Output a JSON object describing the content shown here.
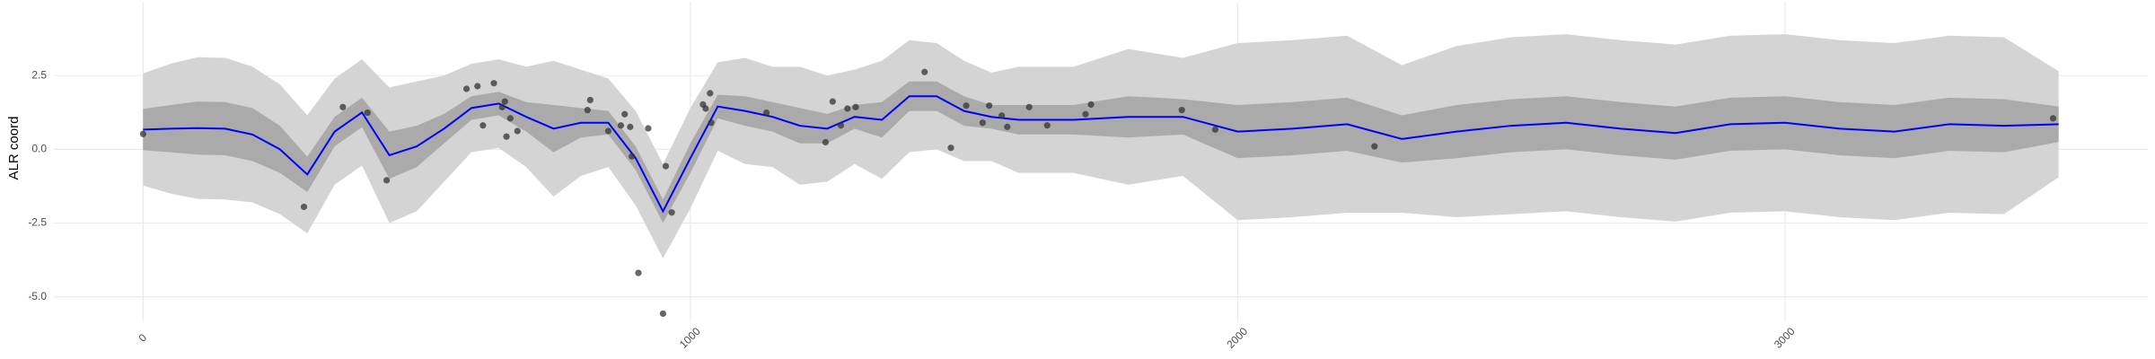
{
  "chart_data": {
    "type": "line",
    "y_label": "ALR coord",
    "xlim": [
      -163,
      3663
    ],
    "ylim": [
      -5.86,
      5.0
    ],
    "xticks": [
      0,
      1000,
      2000,
      3000
    ],
    "yticks": [
      {
        "value": -5,
        "label": "-5.0"
      },
      -2.5,
      {
        "value": 0,
        "label": "0.0"
      },
      2.5
    ],
    "grid": true,
    "x": [
      0,
      50,
      100,
      150,
      200,
      250,
      300,
      350,
      400,
      450,
      500,
      550,
      600,
      650,
      700,
      750,
      800,
      850,
      900,
      950,
      1000,
      1050,
      1100,
      1150,
      1200,
      1250,
      1300,
      1350,
      1400,
      1450,
      1500,
      1550,
      1600,
      1700,
      1800,
      1900,
      2000,
      2100,
      2200,
      2300,
      2400,
      2500,
      2600,
      2700,
      2800,
      2900,
      3000,
      3100,
      3200,
      3300,
      3400,
      3500
    ],
    "ribbons": [
      {
        "color": "#d4d4d4",
        "upper": [
          2.57,
          2.9,
          3.12,
          3.1,
          2.8,
          2.2,
          1.15,
          2.4,
          3.05,
          2.1,
          2.3,
          2.5,
          2.9,
          3.05,
          2.8,
          3.0,
          2.7,
          2.4,
          1.3,
          -0.5,
          1.4,
          2.95,
          3.1,
          2.8,
          2.8,
          2.5,
          2.7,
          3.0,
          3.7,
          3.6,
          3.0,
          2.6,
          2.8,
          2.8,
          3.4,
          3.1,
          3.6,
          3.7,
          3.85,
          2.85,
          3.5,
          3.8,
          3.9,
          3.7,
          3.55,
          3.85,
          3.9,
          3.7,
          3.6,
          3.85,
          3.8,
          2.65
        ],
        "lower": [
          -1.23,
          -1.5,
          -1.68,
          -1.7,
          -1.8,
          -2.2,
          -2.85,
          -1.2,
          -0.55,
          -2.5,
          -2.1,
          -1.1,
          -0.1,
          0.05,
          -0.6,
          -1.6,
          -0.9,
          -0.6,
          -1.9,
          -3.7,
          -2.0,
          -0.05,
          -0.5,
          -0.6,
          -1.2,
          -1.1,
          -0.5,
          -1.0,
          -0.1,
          0.0,
          -0.4,
          -0.4,
          -0.8,
          -0.8,
          -1.2,
          -0.9,
          -2.4,
          -2.3,
          -2.15,
          -2.15,
          -2.3,
          -2.2,
          -2.1,
          -2.3,
          -2.45,
          -2.15,
          -2.1,
          -2.3,
          -2.4,
          -2.15,
          -2.2,
          -0.95
        ]
      },
      {
        "color": "#aaaaaa",
        "upper": [
          1.37,
          1.5,
          1.62,
          1.6,
          1.4,
          0.8,
          -0.25,
          1.1,
          1.75,
          0.6,
          0.8,
          1.2,
          1.8,
          1.95,
          1.6,
          1.5,
          1.4,
          1.3,
          0.1,
          -1.7,
          0.2,
          1.85,
          1.8,
          1.6,
          1.4,
          1.2,
          1.5,
          1.6,
          2.3,
          2.3,
          1.8,
          1.5,
          1.5,
          1.5,
          1.8,
          1.7,
          1.5,
          1.6,
          1.75,
          1.15,
          1.5,
          1.7,
          1.8,
          1.6,
          1.45,
          1.75,
          1.8,
          1.6,
          1.5,
          1.75,
          1.7,
          1.45
        ],
        "lower": [
          -0.03,
          -0.1,
          -0.18,
          -0.2,
          -0.4,
          -0.8,
          -1.45,
          0.1,
          0.75,
          -1.0,
          -0.6,
          0.2,
          1.0,
          1.15,
          0.6,
          -0.1,
          0.4,
          0.5,
          -0.7,
          -2.5,
          -0.8,
          1.05,
          0.8,
          0.6,
          0.2,
          0.2,
          0.7,
          0.4,
          1.3,
          1.3,
          0.8,
          0.7,
          0.5,
          0.5,
          0.4,
          0.5,
          -0.3,
          -0.2,
          -0.05,
          -0.45,
          -0.3,
          -0.1,
          0.0,
          -0.2,
          -0.35,
          -0.05,
          0.0,
          -0.2,
          -0.3,
          -0.05,
          -0.1,
          0.25
        ]
      }
    ],
    "line": {
      "color": "#0000ff",
      "values": [
        0.67,
        0.7,
        0.72,
        0.7,
        0.5,
        0.0,
        -0.85,
        0.6,
        1.25,
        -0.2,
        0.1,
        0.7,
        1.4,
        1.55,
        1.1,
        0.7,
        0.9,
        0.9,
        -0.3,
        -2.1,
        -0.3,
        1.45,
        1.3,
        1.1,
        0.8,
        0.7,
        1.1,
        1.0,
        1.8,
        1.8,
        1.3,
        1.1,
        1.0,
        1.0,
        1.1,
        1.1,
        0.6,
        0.7,
        0.85,
        0.35,
        0.6,
        0.8,
        0.9,
        0.7,
        0.55,
        0.85,
        0.9,
        0.7,
        0.6,
        0.85,
        0.8,
        0.85
      ]
    },
    "points": {
      "color": "#333333",
      "x": [
        0,
        294,
        365,
        410,
        445,
        591,
        611,
        621,
        641,
        656,
        661,
        664,
        671,
        684,
        812,
        817,
        850,
        873,
        880,
        890,
        893,
        905,
        923,
        950,
        955,
        966,
        1023,
        1028,
        1036,
        1038,
        1139,
        1247,
        1260,
        1275,
        1287,
        1302,
        1428,
        1504,
        1476,
        1534,
        1546,
        1569,
        1579,
        1619,
        1652,
        1722,
        1732,
        1898,
        1959,
        2250,
        3490
      ],
      "y": [
        0.52,
        -1.95,
        1.43,
        1.24,
        -1.05,
        2.05,
        2.14,
        0.81,
        2.24,
        1.43,
        1.62,
        0.43,
        1.05,
        0.62,
        1.33,
        1.67,
        0.62,
        0.81,
        1.19,
        0.76,
        -0.24,
        -4.19,
        0.71,
        -5.57,
        -0.57,
        -2.14,
        1.52,
        1.38,
        1.9,
        0.9,
        1.24,
        0.24,
        1.62,
        0.81,
        1.38,
        1.43,
        2.62,
        1.48,
        0.05,
        0.9,
        1.48,
        1.14,
        0.76,
        1.43,
        0.81,
        1.19,
        1.52,
        1.33,
        0.67,
        0.1,
        1.05
      ]
    }
  }
}
